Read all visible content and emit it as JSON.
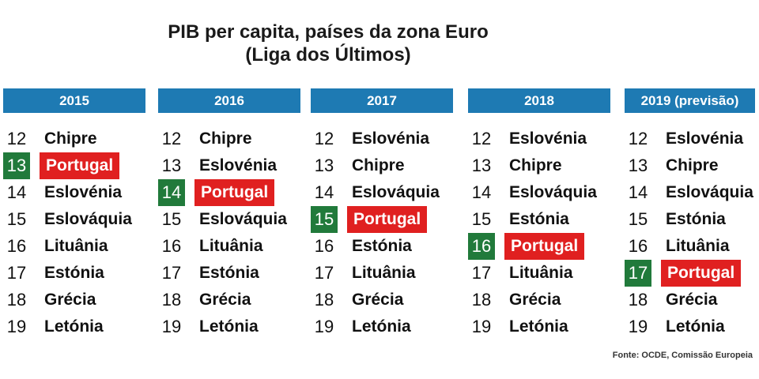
{
  "title": {
    "line1": "PIB per capita, países da zona Euro",
    "line2": "(Liga dos Últimos)"
  },
  "columns": [
    {
      "year": "2015",
      "rows": [
        {
          "rank": "12",
          "country": "Chipre",
          "highlight": false
        },
        {
          "rank": "13",
          "country": "Portugal",
          "highlight": true
        },
        {
          "rank": "14",
          "country": "Eslovénia",
          "highlight": false
        },
        {
          "rank": "15",
          "country": "Eslováquia",
          "highlight": false
        },
        {
          "rank": "16",
          "country": "Lituânia",
          "highlight": false
        },
        {
          "rank": "17",
          "country": "Estónia",
          "highlight": false
        },
        {
          "rank": "18",
          "country": "Grécia",
          "highlight": false
        },
        {
          "rank": "19",
          "country": "Letónia",
          "highlight": false
        }
      ]
    },
    {
      "year": "2016",
      "rows": [
        {
          "rank": "12",
          "country": "Chipre",
          "highlight": false
        },
        {
          "rank": "13",
          "country": "Eslovénia",
          "highlight": false
        },
        {
          "rank": "14",
          "country": "Portugal",
          "highlight": true
        },
        {
          "rank": "15",
          "country": "Eslováquia",
          "highlight": false
        },
        {
          "rank": "16",
          "country": "Lituânia",
          "highlight": false
        },
        {
          "rank": "17",
          "country": "Estónia",
          "highlight": false
        },
        {
          "rank": "18",
          "country": "Grécia",
          "highlight": false
        },
        {
          "rank": "19",
          "country": "Letónia",
          "highlight": false
        }
      ]
    },
    {
      "year": "2017",
      "rows": [
        {
          "rank": "12",
          "country": "Eslovénia",
          "highlight": false
        },
        {
          "rank": "13",
          "country": "Chipre",
          "highlight": false
        },
        {
          "rank": "14",
          "country": "Eslováquia",
          "highlight": false
        },
        {
          "rank": "15",
          "country": "Portugal",
          "highlight": true
        },
        {
          "rank": "16",
          "country": "Estónia",
          "highlight": false
        },
        {
          "rank": "17",
          "country": "Lituânia",
          "highlight": false
        },
        {
          "rank": "18",
          "country": "Grécia",
          "highlight": false
        },
        {
          "rank": "19",
          "country": "Letónia",
          "highlight": false
        }
      ]
    },
    {
      "year": "2018",
      "rows": [
        {
          "rank": "12",
          "country": "Eslovénia",
          "highlight": false
        },
        {
          "rank": "13",
          "country": "Chipre",
          "highlight": false
        },
        {
          "rank": "14",
          "country": "Eslováquia",
          "highlight": false
        },
        {
          "rank": "15",
          "country": "Estónia",
          "highlight": false
        },
        {
          "rank": "16",
          "country": "Portugal",
          "highlight": true
        },
        {
          "rank": "17",
          "country": "Lituânia",
          "highlight": false
        },
        {
          "rank": "18",
          "country": "Grécia",
          "highlight": false
        },
        {
          "rank": "19",
          "country": "Letónia",
          "highlight": false
        }
      ]
    },
    {
      "year": "2019 (previsão)",
      "rows": [
        {
          "rank": "12",
          "country": "Eslovénia",
          "highlight": false
        },
        {
          "rank": "13",
          "country": "Chipre",
          "highlight": false
        },
        {
          "rank": "14",
          "country": "Eslováquia",
          "highlight": false
        },
        {
          "rank": "15",
          "country": "Estónia",
          "highlight": false
        },
        {
          "rank": "16",
          "country": "Lituânia",
          "highlight": false
        },
        {
          "rank": "17",
          "country": "Portugal",
          "highlight": true
        },
        {
          "rank": "18",
          "country": "Grécia",
          "highlight": false
        },
        {
          "rank": "19",
          "country": "Letónia",
          "highlight": false
        }
      ]
    }
  ],
  "source": "Fonte: OCDE, Comissão Europeia",
  "colors": {
    "header": "#1e7ab3",
    "highlight_rank": "#217a3b",
    "highlight_name": "#e02020"
  }
}
